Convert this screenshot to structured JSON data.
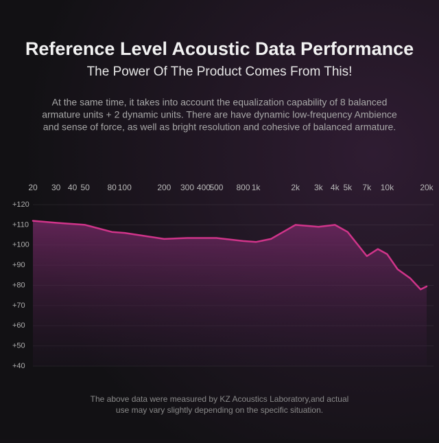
{
  "chart_data": {
    "type": "line",
    "title": "Reference Level Acoustic Data Performance",
    "subtitle": "The Power Of The Product Comes From This!",
    "description": [
      "At the same time, it takes into account the equalization capability of 8 balanced",
      "armature units + 2 dynamic units. There are have dynamic low-frequency Ambience",
      "and sense of force, as well as bright resolution and cohesive of balanced armature."
    ],
    "footnote": [
      "The above data were measured by KZ Acoustics Laboratory,and actual",
      "use may vary slightly depending on the specific situation."
    ],
    "x": [
      20,
      30,
      50,
      80,
      100,
      200,
      300,
      500,
      800,
      1000,
      1300,
      2000,
      3000,
      4000,
      5000,
      7000,
      8500,
      10000,
      12000,
      15000,
      18000,
      20000
    ],
    "values": [
      112,
      111,
      110,
      106.5,
      106,
      103,
      103.5,
      103.5,
      102,
      101.5,
      103,
      110,
      109,
      110,
      106.5,
      94.5,
      98,
      95.5,
      88,
      83.5,
      78,
      79.5
    ],
    "color": "#d0348a",
    "xscale": "log",
    "xlim": [
      20,
      20000
    ],
    "xticks": [
      20,
      30,
      40,
      50,
      80,
      100,
      200,
      300,
      400,
      500,
      800,
      {
        "value": 1000,
        "label": "1k"
      },
      {
        "value": 2000,
        "label": "2k"
      },
      {
        "value": 3000,
        "label": "3k"
      },
      {
        "value": 4000,
        "label": "4k"
      },
      {
        "value": 5000,
        "label": "5k"
      },
      {
        "value": 7000,
        "label": "7k"
      },
      {
        "value": 10000,
        "label": "10k"
      },
      {
        "value": 20000,
        "label": "20k"
      }
    ],
    "ylim": [
      40,
      120
    ],
    "yticks": [
      {
        "value": 120,
        "label": "+120"
      },
      {
        "value": 110,
        "label": "+110"
      },
      {
        "value": 100,
        "label": "+100"
      },
      {
        "value": 90,
        "label": "+90"
      },
      {
        "value": 80,
        "label": "+80"
      },
      {
        "value": 70,
        "label": "+70"
      },
      {
        "value": 60,
        "label": "+60"
      },
      {
        "value": 50,
        "label": "+50"
      },
      {
        "value": 40,
        "label": "+40"
      }
    ],
    "grid": true
  }
}
